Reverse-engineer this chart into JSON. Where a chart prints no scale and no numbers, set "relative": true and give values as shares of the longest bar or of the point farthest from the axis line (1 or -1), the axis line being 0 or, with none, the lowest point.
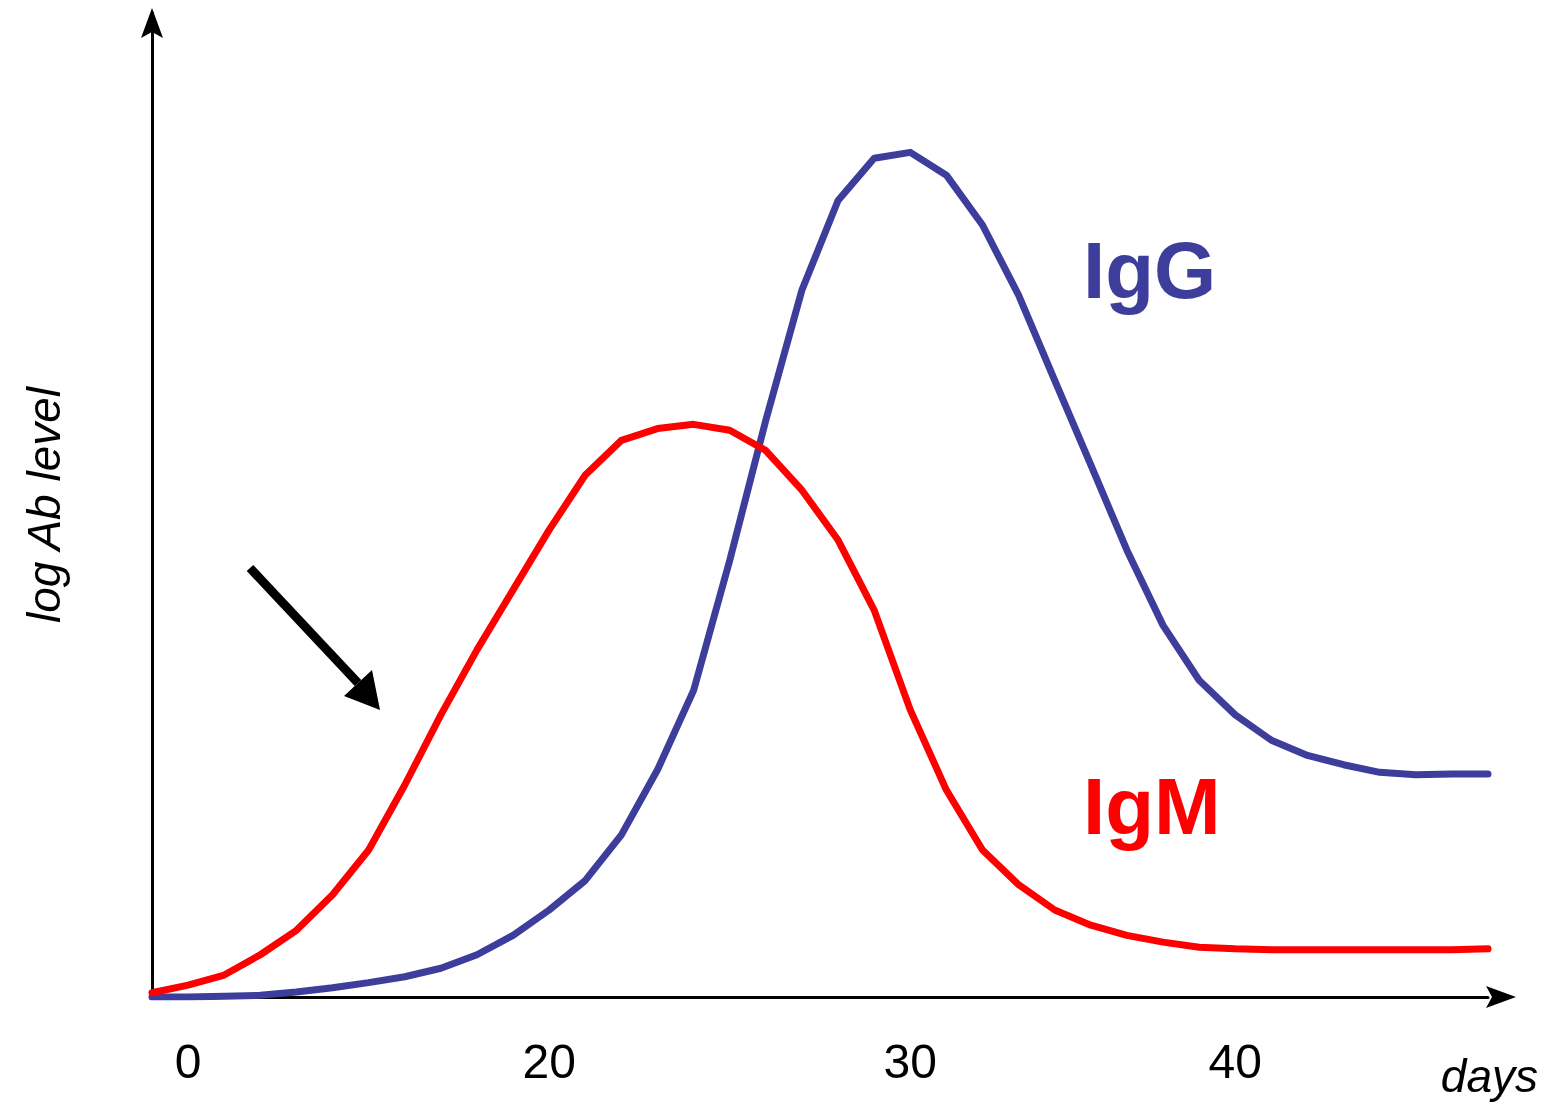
{
  "chart_data": {
    "type": "line",
    "relative": true,
    "xlabel": "days",
    "ylabel": "log Ab level",
    "legend": false,
    "grid": false,
    "marker": "none",
    "line_style": "solid",
    "tick_labels": "x",
    "categories": [
      null,
      "0",
      null,
      null,
      null,
      null,
      null,
      null,
      null,
      null,
      null,
      "20",
      null,
      null,
      null,
      null,
      null,
      null,
      null,
      null,
      null,
      "30",
      null,
      null,
      null,
      null,
      null,
      null,
      null,
      null,
      "40",
      null,
      null,
      null,
      null,
      null,
      null,
      null
    ],
    "series": [
      {
        "name": "IgG",
        "color": "#3d3d9c",
        "values": [
          0,
          0,
          0.001,
          0.002,
          0.006,
          0.011,
          0.017,
          0.024,
          0.034,
          0.05,
          0.073,
          0.103,
          0.138,
          0.192,
          0.269,
          0.363,
          0.517,
          0.683,
          0.837,
          0.943,
          0.993,
          1,
          0.973,
          0.914,
          0.831,
          0.73,
          0.63,
          0.529,
          0.44,
          0.375,
          0.334,
          0.304,
          0.286,
          0.275,
          0.266,
          0.263,
          0.264,
          0.264
        ]
      },
      {
        "name": "IgM",
        "color": "#ff0000",
        "values": [
          0.005,
          0.014,
          0.026,
          0.05,
          0.079,
          0.121,
          0.174,
          0.251,
          0.334,
          0.411,
          0.482,
          0.553,
          0.618,
          0.659,
          0.673,
          0.678,
          0.671,
          0.647,
          0.6,
          0.541,
          0.458,
          0.34,
          0.245,
          0.174,
          0.133,
          0.103,
          0.085,
          0.073,
          0.065,
          0.059,
          0.057,
          0.056,
          0.056,
          0.056,
          0.056,
          0.056,
          0.056,
          0.057
        ]
      }
    ]
  }
}
